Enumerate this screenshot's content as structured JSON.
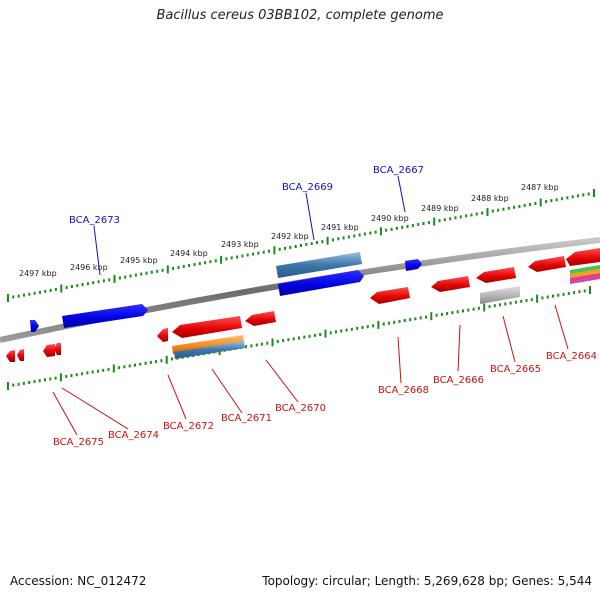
{
  "title": "Bacillus cereus 03BB102, complete genome",
  "footer": {
    "accession_label": "Accession:",
    "accession": "NC_012472",
    "topology_label": "Topology:",
    "topology": "circular",
    "length_label": "Length:",
    "length": "5,269,628 bp",
    "genes_label": "Genes:",
    "genes": "5,544"
  },
  "scale": {
    "ticks": [
      "2497 kbp",
      "2496 kbp",
      "2495 kbp",
      "2494 kbp",
      "2493 kbp",
      "2492 kbp",
      "2491 kbp",
      "2490 kbp",
      "2489 kbp",
      "2488 kbp",
      "2487 kbp"
    ]
  },
  "genes_top": [
    {
      "label": "BCA_2673"
    },
    {
      "label": "BCA_2669"
    },
    {
      "label": "BCA_2667"
    }
  ],
  "genes_bottom": [
    {
      "label": "BCA_2675"
    },
    {
      "label": "BCA_2674"
    },
    {
      "label": "BCA_2672"
    },
    {
      "label": "BCA_2671"
    },
    {
      "label": "BCA_2670"
    },
    {
      "label": "BCA_2668"
    },
    {
      "label": "BCA_2666"
    },
    {
      "label": "BCA_2665"
    },
    {
      "label": "BCA_2664"
    }
  ],
  "colors": {
    "forward": "#1010e0",
    "reverse": "#e81010",
    "steel": "#4a7fb0",
    "orange": "#f08a1a",
    "gray": "#b0b0b0",
    "tick": "#1a8a1a",
    "backbone": "#808080"
  }
}
